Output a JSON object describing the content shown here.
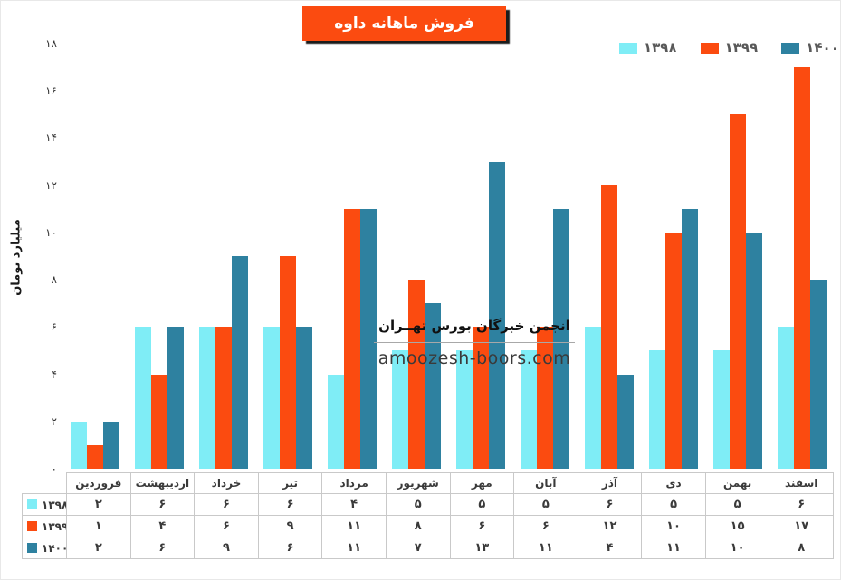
{
  "title": "فروش ماهانه داوه",
  "colors": {
    "title_bg": "#fb4b10",
    "series_1398": "#7fedf6",
    "series_1399": "#fb4b10",
    "series_1400": "#2e81a0",
    "legend_text": "#595959",
    "table_border": "#c9c9c9"
  },
  "y_axis": {
    "label": "میلیارد تومان",
    "max": 18,
    "ticks": [
      {
        "value": 0,
        "label": "۰"
      },
      {
        "value": 2,
        "label": "۲"
      },
      {
        "value": 4,
        "label": "۴"
      },
      {
        "value": 6,
        "label": "۶"
      },
      {
        "value": 8,
        "label": "۸"
      },
      {
        "value": 10,
        "label": "۱۰"
      },
      {
        "value": 12,
        "label": "۱۲"
      },
      {
        "value": 14,
        "label": "۱۴"
      },
      {
        "value": 16,
        "label": "۱۶"
      },
      {
        "value": 18,
        "label": "۱۸"
      }
    ]
  },
  "watermark": {
    "line1": "انجمن خبرگان بورس تهــران",
    "line2": "amoozesh-boors.com"
  },
  "chart_data": {
    "type": "bar",
    "title": "فروش ماهانه داوه",
    "ylabel": "میلیارد تومان",
    "xlabel": "",
    "ylim": [
      0,
      18
    ],
    "grid": false,
    "legend_position": "top-right",
    "categories": [
      "فروردین",
      "اردیبهشت",
      "خرداد",
      "تیر",
      "مرداد",
      "شهریور",
      "مهر",
      "آبان",
      "آذر",
      "دی",
      "بهمن",
      "اسفند"
    ],
    "series": [
      {
        "name": "۱۳۹۸",
        "color": "#7fedf6",
        "values": [
          2,
          6,
          6,
          6,
          4,
          5,
          5,
          5,
          6,
          5,
          5,
          6
        ],
        "labels": [
          "۲",
          "۶",
          "۶",
          "۶",
          "۴",
          "۵",
          "۵",
          "۵",
          "۶",
          "۵",
          "۵",
          "۶"
        ]
      },
      {
        "name": "۱۳۹۹",
        "color": "#fb4b10",
        "values": [
          1,
          4,
          6,
          9,
          11,
          8,
          6,
          6,
          12,
          10,
          15,
          17
        ],
        "labels": [
          "۱",
          "۴",
          "۶",
          "۹",
          "۱۱",
          "۸",
          "۶",
          "۶",
          "۱۲",
          "۱۰",
          "۱۵",
          "۱۷"
        ]
      },
      {
        "name": "۱۴۰۰",
        "color": "#2e81a0",
        "values": [
          2,
          6,
          9,
          6,
          11,
          7,
          13,
          11,
          4,
          11,
          10,
          8
        ],
        "labels": [
          "۲",
          "۶",
          "۹",
          "۶",
          "۱۱",
          "۷",
          "۱۳",
          "۱۱",
          "۴",
          "۱۱",
          "۱۰",
          "۸"
        ]
      }
    ]
  }
}
